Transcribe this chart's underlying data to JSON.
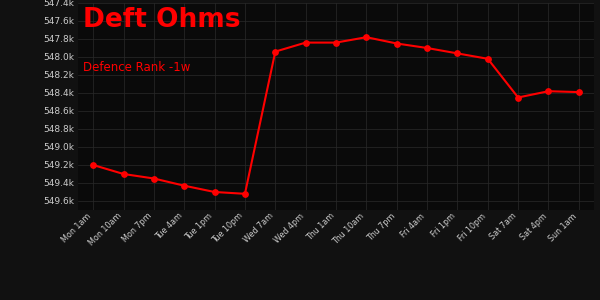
{
  "title": "Deft Ohms",
  "subtitle": "Defence Rank -1w",
  "title_color": "#ff0000",
  "subtitle_color": "#ff0000",
  "bg_color": "#111111",
  "plot_bg_color": "#0a0a0a",
  "yaxis_bg_color": "#1a1a1a",
  "grid_color": "#2a2a2a",
  "line_color": "#ff0000",
  "marker_color": "#ff0000",
  "text_color": "#cccccc",
  "tick_labels": [
    "Mon 1am",
    "Mon 10am",
    "Mon 7pm",
    "Tue 4am",
    "Tue 1pm",
    "Tue 10pm",
    "Wed 7am",
    "Wed 4pm",
    "Thu 1am",
    "Thu 10am",
    "Thu 7pm",
    "Fri 4am",
    "Fri 1pm",
    "Fri 10pm",
    "Sat 7am",
    "Sat 4pm",
    "Sun 1am"
  ],
  "x_values": [
    0,
    1,
    2,
    3,
    4,
    5,
    6,
    7,
    8,
    9,
    10,
    11,
    12,
    13,
    14,
    15,
    16
  ],
  "y_values": [
    549200,
    549300,
    549350,
    549430,
    549500,
    549520,
    547940,
    547840,
    547840,
    547780,
    547850,
    547900,
    547960,
    548020,
    548450,
    548380,
    548390
  ],
  "ylim_min": 547400,
  "ylim_max": 549700,
  "ytick_step": 200,
  "figwidth": 6.0,
  "figheight": 3.0,
  "dpi": 100
}
